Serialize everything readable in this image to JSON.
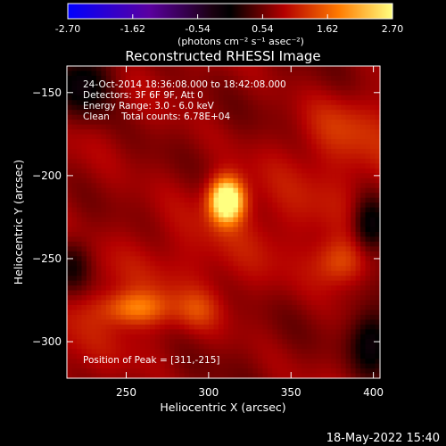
{
  "colorbar": {
    "ticks": [
      "-2.70",
      "-1.62",
      "-0.54",
      "0.54",
      "1.62",
      "2.70"
    ],
    "tick_values": [
      -2.7,
      -1.62,
      -0.54,
      0.54,
      1.62,
      2.7
    ],
    "range": [
      -2.7,
      2.7
    ],
    "unit_label": "(photons cm⁻² s⁻¹ asec⁻²)",
    "stops": [
      {
        "v": -2.7,
        "color": "#0000ff"
      },
      {
        "v": -1.35,
        "color": "#5a00a0"
      },
      {
        "v": -0.3,
        "color": "#1a0010"
      },
      {
        "v": 0.0,
        "color": "#000000"
      },
      {
        "v": 0.9,
        "color": "#b40000"
      },
      {
        "v": 1.8,
        "color": "#ff7a00"
      },
      {
        "v": 2.7,
        "color": "#ffff80"
      }
    ]
  },
  "image_colors": {
    "background": "#b81a0a",
    "dark": "#5a1a55",
    "bright": "#ffff60"
  },
  "chart_data": {
    "type": "heatmap",
    "title": "Reconstructed RHESSI Image",
    "xlabel": "Heliocentric X (arcsec)",
    "ylabel": "Heliocentric Y (arcsec)",
    "xlim": [
      214,
      404
    ],
    "ylim": [
      -322,
      -134
    ],
    "x_ticks": [
      250,
      300,
      350,
      400
    ],
    "y_ticks": [
      -150,
      -200,
      -250,
      -300
    ],
    "annotations": [
      "24-Oct-2014 18:36:08.000 to 18:42:08.000",
      "Detectors: 3F 6F 9F, Att 0",
      "Energy Range: 3.0 - 6.0 keV",
      "Clean    Total counts: 6.78E+04"
    ],
    "peak_label": "Position of Peak = [311,-215]",
    "peak": {
      "x": 311,
      "y": -215
    },
    "sources": [
      {
        "x": 311,
        "y": -215,
        "amp": 2.7,
        "sx": 7,
        "sy": 9
      },
      {
        "x": 255,
        "y": -280,
        "amp": 0.95,
        "sx": 14,
        "sy": 7
      },
      {
        "x": 293,
        "y": -281,
        "amp": 0.45,
        "sx": 9,
        "sy": 8
      },
      {
        "x": 380,
        "y": -252,
        "amp": 0.8,
        "sx": 11,
        "sy": 10
      },
      {
        "x": 380,
        "y": -170,
        "amp": 0.35,
        "sx": 18,
        "sy": 14
      }
    ],
    "dark_regions": [
      {
        "x": 225,
        "y": -145,
        "amp": 0.9,
        "sx": 12,
        "sy": 14
      },
      {
        "x": 398,
        "y": -230,
        "amp": 1.0,
        "sx": 8,
        "sy": 12
      },
      {
        "x": 400,
        "y": -300,
        "amp": 1.0,
        "sx": 9,
        "sy": 14
      },
      {
        "x": 218,
        "y": -255,
        "amp": 0.7,
        "sx": 8,
        "sy": 12
      }
    ]
  },
  "footer": {
    "timestamp": "18-May-2022 15:40"
  }
}
